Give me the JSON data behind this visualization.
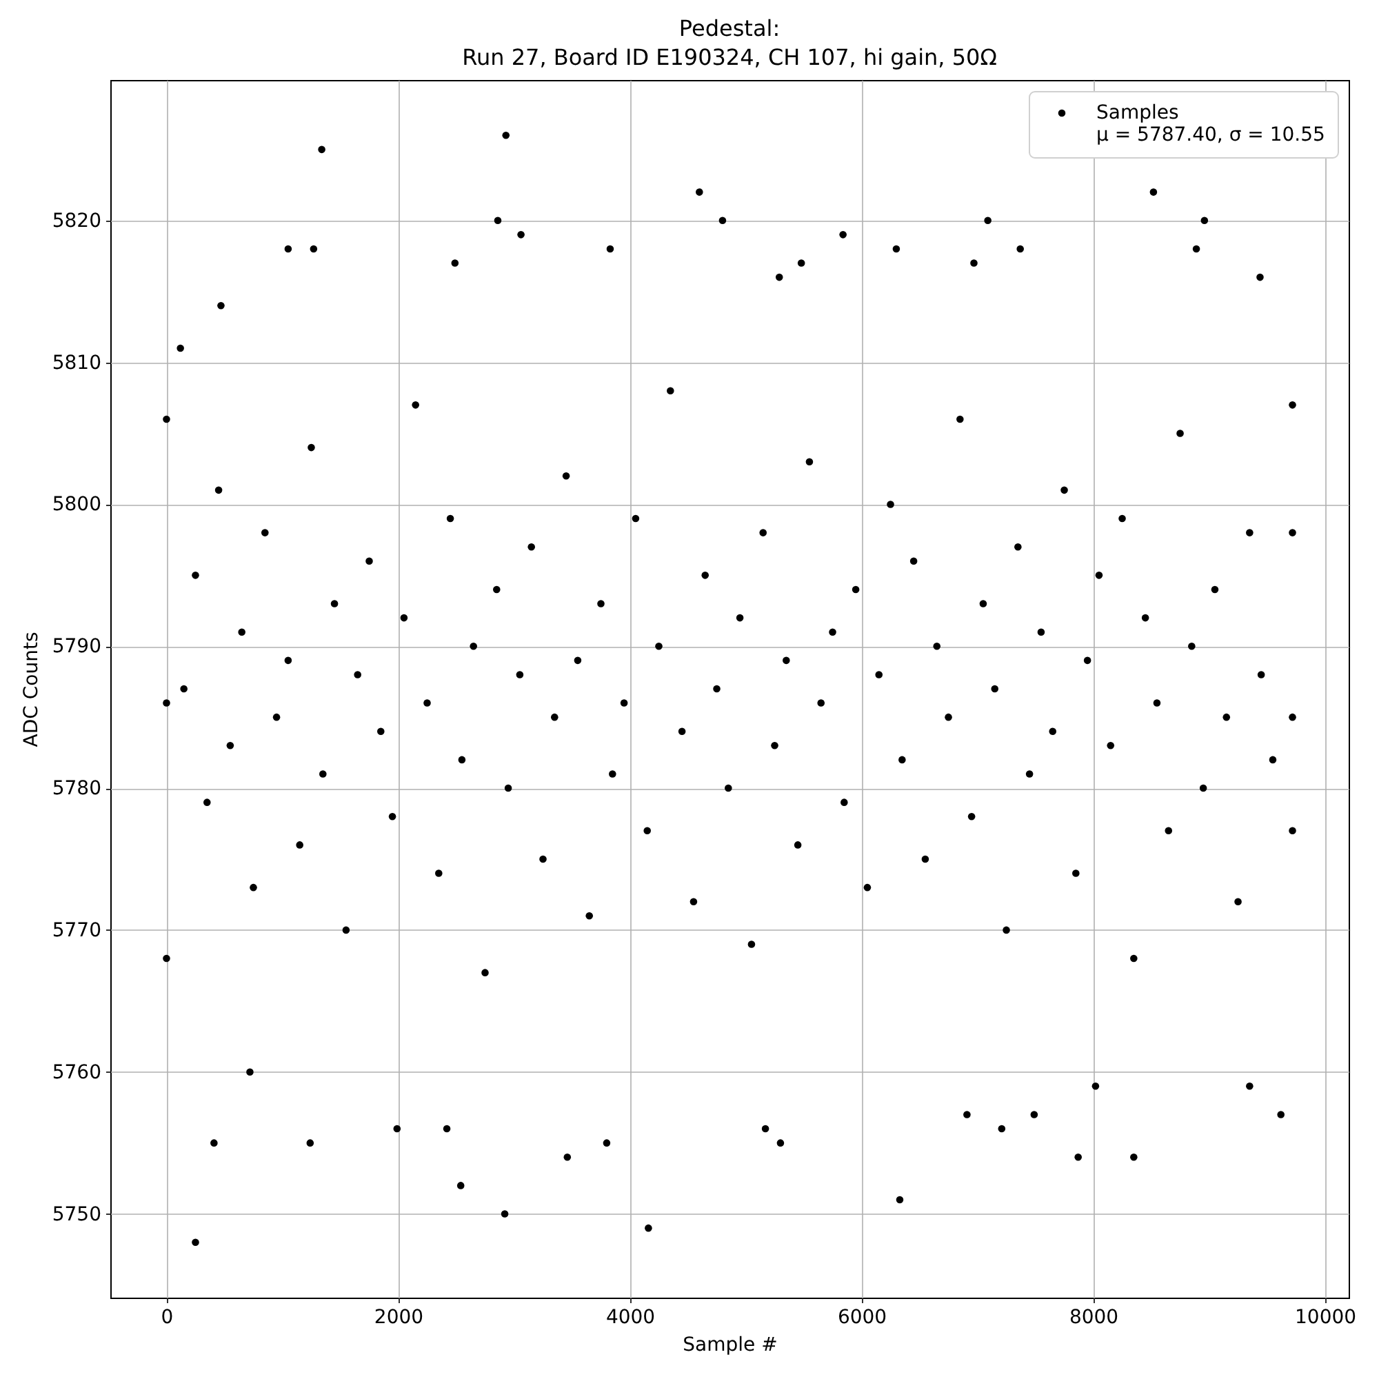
{
  "chart_data": {
    "type": "scatter",
    "title": "Pedestal:\nRun 27, Board ID E190324, CH 107, hi gain, 50Ω",
    "xlabel": "Sample #",
    "ylabel": "ADC Counts",
    "series": [
      {
        "name": "Samples\nμ = 5787.40, σ = 10.55",
        "color": "#000000",
        "x": [
          1340,
          2930,
          2860,
          3060,
          4600,
          4800,
          1050,
          1270,
          3830,
          8520,
          8960,
          7090,
          5840,
          6300,
          7370,
          8890,
          2490,
          5480,
          6970,
          9440,
          5290,
          470,
          120,
          250,
          2920,
          4160,
          2540,
          3460,
          410,
          1240,
          3800,
          1990,
          2420,
          6330,
          7870,
          8350,
          5170,
          5300,
          7210,
          9620,
          7490,
          6910,
          720,
          8020,
          9350,
          0,
          0,
          0,
          9720,
          9720,
          9720,
          9720,
          150,
          250,
          350,
          450,
          550,
          650,
          750,
          850,
          950,
          1050,
          1150,
          1250,
          1350,
          1450,
          1550,
          1650,
          1750,
          1850,
          1950,
          2050,
          2150,
          2250,
          2350,
          2450,
          2550,
          2650,
          2750,
          2850,
          2950,
          3050,
          3150,
          3250,
          3350,
          3450,
          3550,
          3650,
          3750,
          3850,
          3950,
          4050,
          4150,
          4250,
          4350,
          4450,
          4550,
          4650,
          4750,
          4850,
          4950,
          5050,
          5150,
          5250,
          5350,
          5450,
          5550,
          5650,
          5750,
          5850,
          5950,
          6050,
          6150,
          6250,
          6350,
          6450,
          6550,
          6650,
          6750,
          6850,
          6950,
          7050,
          7150,
          7250,
          7350,
          7450,
          7550,
          7650,
          7750,
          7850,
          7950,
          8050,
          8150,
          8250,
          8350,
          8450,
          8550,
          8650,
          8750,
          8850,
          8950,
          9050,
          9150,
          9250,
          9350,
          9450,
          9550
        ],
        "values": [
          5825,
          5826,
          5820,
          5819,
          5822,
          5820,
          5818,
          5818,
          5818,
          5822,
          5820,
          5820,
          5819,
          5818,
          5818,
          5818,
          5817,
          5817,
          5817,
          5816,
          5816,
          5814,
          5811,
          5748,
          5750,
          5749,
          5752,
          5754,
          5755,
          5755,
          5755,
          5756,
          5756,
          5751,
          5754,
          5754,
          5756,
          5755,
          5756,
          5757,
          5757,
          5757,
          5760,
          5759,
          5759,
          5768,
          5806,
          5786,
          5807,
          5798,
          5785,
          5777,
          5787,
          5795,
          5779,
          5801,
          5783,
          5791,
          5773,
          5798,
          5785,
          5789,
          5776,
          5804,
          5781,
          5793,
          5770,
          5788,
          5796,
          5784,
          5778,
          5792,
          5807,
          5786,
          5774,
          5799,
          5782,
          5790,
          5767,
          5794,
          5780,
          5788,
          5797,
          5775,
          5785,
          5802,
          5789,
          5771,
          5793,
          5781,
          5786,
          5799,
          5777,
          5790,
          5808,
          5784,
          5772,
          5795,
          5787,
          5780,
          5792,
          5769,
          5798,
          5783,
          5789,
          5776,
          5803,
          5786,
          5791,
          5779,
          5794,
          5773,
          5788,
          5800,
          5782,
          5796,
          5775,
          5790,
          5785,
          5806,
          5778,
          5793,
          5787,
          5770,
          5797,
          5781,
          5791,
          5784,
          5801,
          5774,
          5789,
          5795,
          5783,
          5799,
          5768,
          5792,
          5786,
          5777,
          5805,
          5790,
          5780,
          5794,
          5785,
          5772,
          5798,
          5788,
          5782
        ]
      }
    ],
    "xlim": [
      -485,
      10205
    ],
    "ylim": [
      5744.1,
      5829.9
    ],
    "xticks": [
      0,
      2000,
      4000,
      6000,
      8000,
      10000
    ],
    "yticks": [
      5750,
      5760,
      5770,
      5780,
      5790,
      5800,
      5810,
      5820
    ],
    "grid": true,
    "legend": "top right",
    "marker": "circle"
  }
}
